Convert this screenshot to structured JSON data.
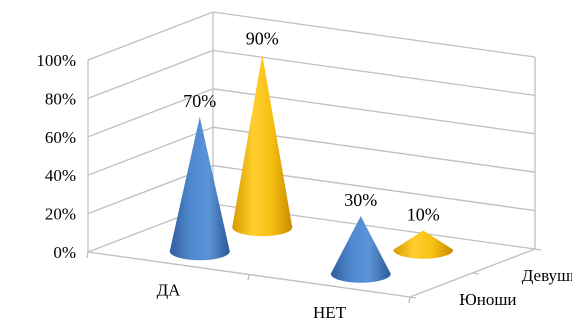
{
  "chart_data": {
    "type": "bar",
    "style": "3d-cone",
    "categories": [
      "ДА",
      "НЕТ"
    ],
    "series": [
      {
        "name": "Юноши",
        "values": [
          70,
          30
        ],
        "data_labels": [
          "70%",
          "30%"
        ],
        "color": "#4a7fc1"
      },
      {
        "name": "Девушки",
        "values": [
          90,
          10
        ],
        "data_labels": [
          "90%",
          "10%"
        ],
        "color": "#f2b800"
      }
    ],
    "ylim": [
      0,
      100
    ],
    "y_ticks": [
      0,
      20,
      40,
      60,
      80,
      100
    ],
    "y_tick_labels": [
      "0%",
      "20%",
      "40%",
      "60%",
      "80%",
      "100%"
    ],
    "grid": true,
    "legend": "none"
  }
}
